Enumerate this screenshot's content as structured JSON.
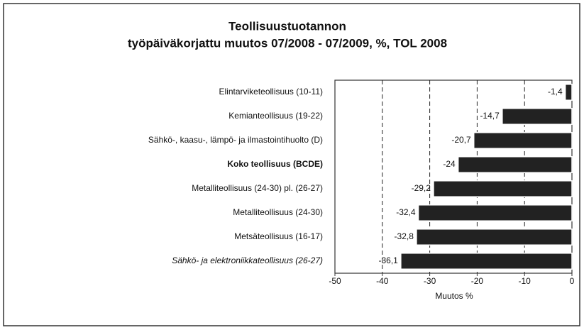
{
  "chart_data": {
    "type": "hbar",
    "title": "Teollisuustuotannon",
    "subtitle": "työpäiväkorjattu muutos 07/2008 - 07/2009,  %,  TOL 2008",
    "x_label": "Muutos %",
    "categories": [
      "Elintarviketeollisuus (10-11)",
      "Kemianteollisuus (19-22)",
      "Sähkö-, kaasu-, lämpö- ja ilmastointihuolto (D)",
      "Koko teollisuus (BCDE)",
      "Metalliteollisuus (24-30) pl. (26-27)",
      "Metalliteollisuus (24-30)",
      "Metsäteollisuus (16-17)",
      "Sähkö- ja elektroniikkateollisuus (26-27)"
    ],
    "values": [
      -1.4,
      -14.7,
      -20.7,
      -24,
      -29.2,
      -32.4,
      -32.8,
      -36.1
    ],
    "value_labels": [
      "-1,4",
      "-14,7",
      "-20,7",
      "-24",
      "-29,2",
      "-32,4",
      "-32,8",
      "-36,1"
    ],
    "color": "#222222",
    "xlim": [
      -50,
      0
    ],
    "xticks": [
      -50,
      -40,
      -30,
      -20,
      -10,
      0
    ],
    "grid": true
  }
}
